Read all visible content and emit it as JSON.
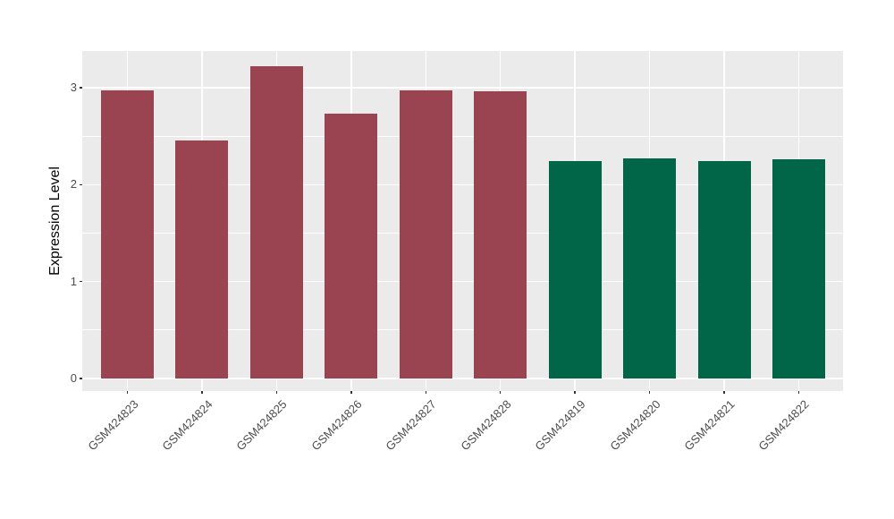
{
  "chart_data": {
    "type": "bar",
    "title": "",
    "xlabel": "",
    "ylabel": "Expression Level",
    "categories": [
      "GSM424823",
      "GSM424824",
      "GSM424825",
      "GSM424826",
      "GSM424827",
      "GSM424828",
      "GSM424819",
      "GSM424820",
      "GSM424821",
      "GSM424822"
    ],
    "values": [
      2.97,
      2.46,
      3.22,
      2.73,
      2.97,
      2.96,
      2.24,
      2.27,
      2.24,
      2.26
    ],
    "bar_colors": [
      "#9A4452",
      "#9A4452",
      "#9A4452",
      "#9A4452",
      "#9A4452",
      "#9A4452",
      "#006647",
      "#006647",
      "#006647",
      "#006647"
    ],
    "yticks": [
      0,
      1,
      2,
      3
    ],
    "yticks_minor": [
      0.5,
      1.5,
      2.5
    ],
    "ylim": [
      0,
      3.38
    ],
    "grid": "major-and-minor-horizontal-plus-category-vertical",
    "legend_position": "none",
    "colors": {
      "panel_background": "#EBEBEB",
      "figure_background": "#FFFFFF",
      "gridline": "#FFFFFF",
      "axis_text": "#4D4D4D",
      "axis_title": "#000000",
      "tick_mark": "#333333",
      "bar_group_red": "#9A4452",
      "bar_group_green": "#006647"
    }
  }
}
